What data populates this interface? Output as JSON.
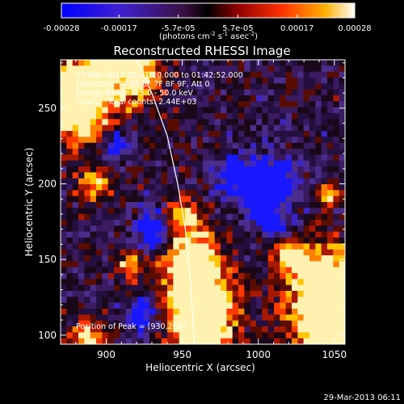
{
  "colorbar": {
    "tick_labels": [
      "-0.00028",
      "-0.00017",
      "-5.7e-05",
      "5.7e-05",
      "0.00017",
      "0.00028"
    ],
    "tick_values": [
      -0.00028,
      -0.00017,
      -5.7e-05,
      5.7e-05,
      0.00017,
      0.00028
    ],
    "range": [
      -0.00028,
      0.00028
    ],
    "units_line1": "(photons cm",
    "units_exp1": "-2",
    "units_line2": " s",
    "units_exp2": "-1",
    "units_line3": " asec",
    "units_exp3": "-2",
    "units_close": ")"
  },
  "chart_data": {
    "type": "heatmap",
    "title": "Reconstructed RHESSI Image",
    "xlabel": "Heliocentric X (arcsec)",
    "ylabel": "Heliocentric Y (arcsec)",
    "xlim": [
      870,
      1057
    ],
    "ylim": [
      94,
      282
    ],
    "x_ticks": [
      900,
      950,
      1000,
      1050
    ],
    "y_ticks": [
      100,
      150,
      200,
      250
    ],
    "annotations": [
      "22-Mar-2013 01:41:10.000 to 01:42:52.000",
      "Detectors: 3F 5F 6F 7F 8F 9F, Att 0",
      "Energy Range: 25.0 - 50.0 keV",
      "Clean    Total counts: 2.44E+03"
    ],
    "peak_label": "Position of Peak = [930,268]",
    "peak": [
      930,
      268
    ],
    "limb_curve": [
      [
        920,
        282
      ],
      [
        930,
        260
      ],
      [
        940,
        232
      ],
      [
        947,
        200
      ],
      [
        952,
        170
      ],
      [
        955,
        140
      ],
      [
        957,
        110
      ],
      [
        958,
        94
      ]
    ],
    "colormap": [
      "#1010ff",
      "#4020c0",
      "#3a1a60",
      "#200810",
      "#8a1000",
      "#ff3a00",
      "#ffb000",
      "#ffffff"
    ]
  },
  "footer": {
    "timestamp": "29-Mar-2013 06:11"
  }
}
